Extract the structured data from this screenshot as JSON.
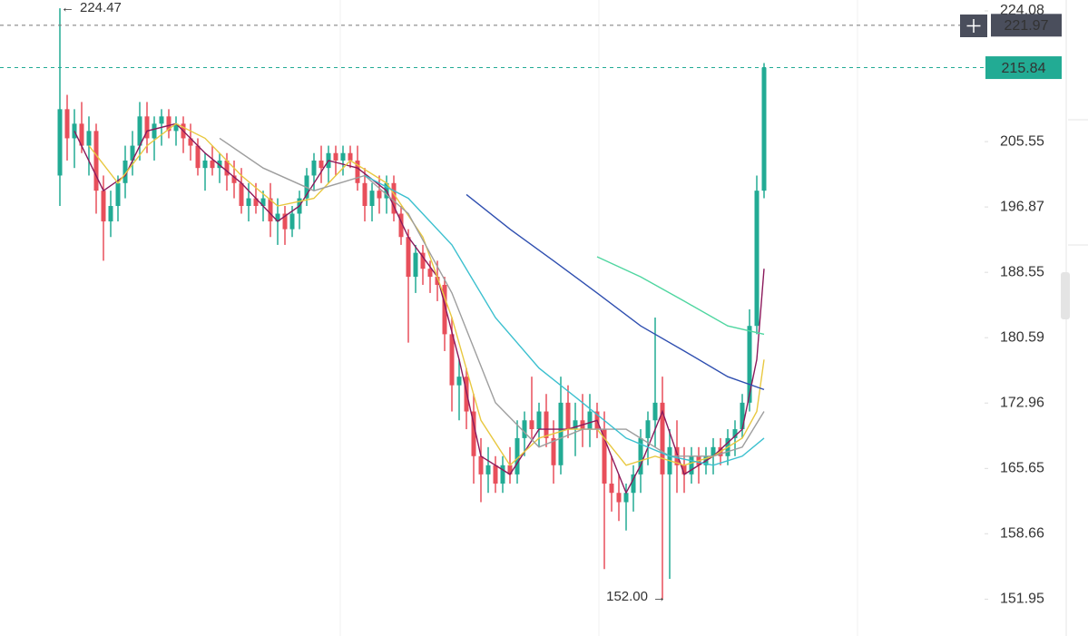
{
  "chart_data": {
    "type": "candlestick",
    "log_scale": true,
    "ylim": [
      148.3,
      225.7
    ],
    "yticks": [
      151.95,
      158.66,
      165.65,
      172.96,
      180.59,
      188.55,
      196.87,
      205.55,
      224.08
    ],
    "up_color": "#22ab94",
    "down_color": "#e84f5b",
    "candles": [
      [
        201,
        224.47,
        197,
        210
      ],
      [
        210,
        212,
        203,
        206
      ],
      [
        206,
        210,
        202,
        208
      ],
      [
        208,
        211,
        204,
        205
      ],
      [
        205,
        209,
        201,
        207
      ],
      [
        207,
        208,
        196,
        199
      ],
      [
        199,
        201,
        190,
        195
      ],
      [
        195,
        199,
        193,
        197
      ],
      [
        197,
        201,
        195,
        200
      ],
      [
        200,
        205,
        198,
        203
      ],
      [
        203,
        207,
        201,
        205
      ],
      [
        205,
        211,
        203,
        209
      ],
      [
        209,
        211,
        204,
        206
      ],
      [
        206,
        209,
        203,
        208
      ],
      [
        208,
        210,
        205,
        209
      ],
      [
        209,
        210,
        206,
        207
      ],
      [
        207,
        209,
        205,
        208
      ],
      [
        208,
        209,
        204,
        206
      ],
      [
        206,
        208,
        203,
        205
      ],
      [
        205,
        206,
        201,
        202
      ],
      [
        202,
        204,
        199,
        203
      ],
      [
        203,
        205,
        201,
        202
      ],
      [
        202,
        204,
        200,
        203
      ],
      [
        203,
        204,
        199,
        201
      ],
      [
        201,
        203,
        198,
        200
      ],
      [
        200,
        202,
        196,
        197
      ],
      [
        197,
        200,
        195,
        198
      ],
      [
        198,
        200,
        196,
        197
      ],
      [
        197,
        199,
        195,
        198
      ],
      [
        198,
        200,
        193,
        195
      ],
      [
        195,
        198,
        192,
        196
      ],
      [
        196,
        197,
        192,
        194
      ],
      [
        194,
        197,
        193,
        196
      ],
      [
        196,
        199,
        194,
        198
      ],
      [
        198,
        202,
        197,
        201
      ],
      [
        201,
        204,
        199,
        203
      ],
      [
        203,
        205,
        200,
        202
      ],
      [
        202,
        205,
        200,
        204
      ],
      [
        204,
        205,
        201,
        203
      ],
      [
        203,
        205,
        201,
        204
      ],
      [
        204,
        205,
        202,
        203
      ],
      [
        203,
        205,
        199,
        200
      ],
      [
        200,
        202,
        195,
        197
      ],
      [
        197,
        200,
        195,
        199
      ],
      [
        199,
        201,
        196,
        198
      ],
      [
        198,
        201,
        196,
        200
      ],
      [
        200,
        201,
        195,
        196
      ],
      [
        196,
        197,
        192,
        193
      ],
      [
        193,
        194,
        180,
        188
      ],
      [
        188,
        192,
        186,
        191
      ],
      [
        191,
        192,
        187,
        189
      ],
      [
        189,
        190,
        186,
        188
      ],
      [
        188,
        190,
        185,
        187
      ],
      [
        187,
        188,
        179,
        181
      ],
      [
        181,
        183,
        172,
        175
      ],
      [
        175,
        178,
        171,
        176
      ],
      [
        176,
        177,
        170,
        172
      ],
      [
        172,
        174,
        164,
        167
      ],
      [
        167,
        169,
        162,
        165
      ],
      [
        165,
        168,
        163,
        166
      ],
      [
        166,
        167,
        163,
        164
      ],
      [
        164,
        167,
        163,
        166
      ],
      [
        166,
        168,
        164,
        165
      ],
      [
        165,
        171,
        164,
        169
      ],
      [
        169,
        172,
        167,
        171
      ],
      [
        171,
        176,
        169,
        170
      ],
      [
        170,
        173,
        168,
        172
      ],
      [
        172,
        174,
        168,
        169
      ],
      [
        169,
        171,
        164,
        166
      ],
      [
        166,
        176,
        165,
        173
      ],
      [
        173,
        175,
        169,
        170
      ],
      [
        170,
        173,
        167,
        171
      ],
      [
        171,
        174,
        168,
        170
      ],
      [
        170,
        174,
        168,
        172
      ],
      [
        172,
        173,
        169,
        170
      ],
      [
        170,
        172,
        155,
        164
      ],
      [
        164,
        167,
        161,
        163
      ],
      [
        163,
        165,
        160,
        162
      ],
      [
        162,
        164,
        159,
        163
      ],
      [
        163,
        166,
        161,
        165
      ],
      [
        165,
        170,
        163,
        169
      ],
      [
        169,
        172,
        166,
        171
      ],
      [
        171,
        183,
        168,
        173
      ],
      [
        173,
        176,
        152,
        165
      ],
      [
        165,
        170,
        154,
        168
      ],
      [
        168,
        171,
        163,
        166
      ],
      [
        166,
        168,
        163,
        165
      ],
      [
        165,
        168,
        164,
        167
      ],
      [
        167,
        168,
        164,
        166
      ],
      [
        166,
        168,
        165,
        167
      ],
      [
        167,
        169,
        165,
        168
      ],
      [
        168,
        169,
        166,
        167
      ],
      [
        167,
        170,
        166,
        169
      ],
      [
        169,
        171,
        167,
        170
      ],
      [
        170,
        174,
        169,
        173
      ],
      [
        173,
        184,
        172,
        182
      ],
      [
        182,
        201,
        181,
        199
      ],
      [
        199,
        216.5,
        198,
        215.84
      ]
    ],
    "overlays": [
      {
        "color": "#8b1a5c",
        "x": [
          2,
          6,
          9,
          12,
          16,
          20,
          25,
          30,
          33,
          37,
          41,
          45,
          48,
          52,
          55,
          58,
          62,
          66,
          70,
          74,
          78,
          80,
          83,
          86,
          90,
          94,
          96,
          97
        ],
        "values": [
          207,
          199,
          201,
          207,
          208,
          204,
          200,
          195,
          197,
          203,
          202,
          199,
          193,
          188,
          178,
          167,
          165,
          170,
          170,
          171,
          163,
          166,
          172,
          165,
          167,
          170,
          178,
          189
        ]
      },
      {
        "color": "#e8c840",
        "x": [
          4,
          8,
          12,
          16,
          20,
          25,
          30,
          35,
          40,
          45,
          50,
          54,
          58,
          62,
          66,
          70,
          74,
          78,
          82,
          86,
          90,
          94,
          96,
          97
        ],
        "values": [
          205,
          200,
          205,
          208,
          206,
          201,
          197,
          198,
          203,
          200,
          193,
          183,
          171,
          166,
          169,
          170,
          170,
          166,
          167,
          166,
          167,
          169,
          172,
          178
        ]
      },
      {
        "color": "#9e9e9e",
        "x": [
          22,
          28,
          35,
          42,
          48,
          54,
          60,
          66,
          72,
          78,
          84,
          90,
          94,
          97
        ],
        "values": [
          206,
          202,
          199,
          201,
          196,
          186,
          173,
          168,
          170,
          170,
          167,
          167,
          168,
          172
        ]
      },
      {
        "color": "#3cc0cf",
        "x": [
          42,
          48,
          54,
          60,
          66,
          72,
          78,
          84,
          90,
          94,
          97
        ],
        "values": [
          201,
          198,
          192,
          183,
          177,
          173,
          169,
          167,
          166,
          167,
          169
        ]
      },
      {
        "color": "#2f4fb0",
        "x": [
          56,
          62,
          68,
          74,
          80,
          86,
          92,
          97
        ],
        "values": [
          198.5,
          194,
          190,
          186,
          182,
          179,
          176,
          174.5
        ]
      },
      {
        "color": "#4fd6a0",
        "x": [
          74,
          80,
          86,
          92,
          97
        ],
        "values": [
          190.5,
          188,
          185,
          182,
          181
        ]
      }
    ],
    "high_label": 224.47,
    "low_label": {
      "value": 152,
      "label": "152.00"
    },
    "last_price": 215.84,
    "last_price_color": "#22ab94",
    "crosshair_price": 221.97
  }
}
